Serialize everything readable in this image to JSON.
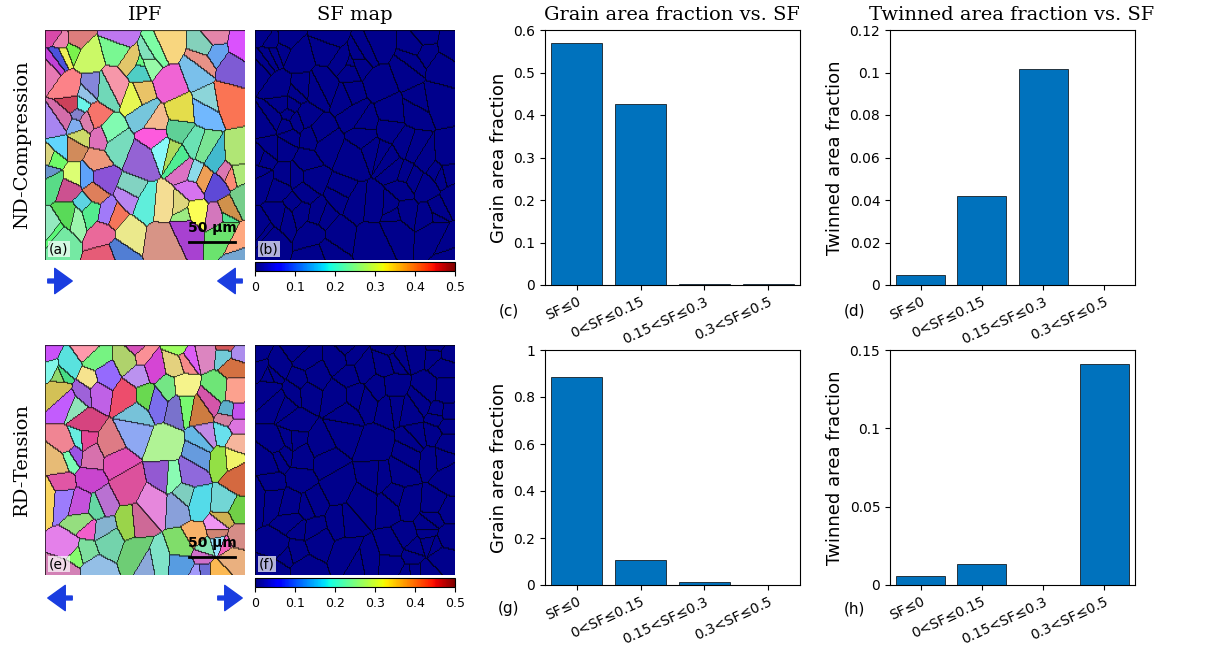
{
  "column_titles": [
    "IPF",
    "SF map",
    "Grain area fraction vs. SF",
    "Twinned area fraction vs. SF"
  ],
  "rows": [
    {
      "label": "ND-Compression",
      "ipf_panel": "(a)",
      "sf_panel": "(b)"
    },
    {
      "label": "RD-Tension",
      "ipf_panel": "(e)",
      "sf_panel": "(f)"
    }
  ],
  "scale_bar": "50 μm",
  "colorbar": {
    "range": [
      0,
      0.5
    ],
    "ticks": [
      0,
      0.1,
      0.2,
      0.3,
      0.4,
      0.5
    ]
  },
  "chart_data": [
    {
      "type": "bar",
      "panel": "(c)",
      "ylabel": "Grain area fraction",
      "categories": [
        "SF≤0",
        "0<SF≤0.15",
        "0.15<SF≤0.3",
        "0.3<SF≤0.5"
      ],
      "values": [
        0.57,
        0.425,
        0.003,
        0.003
      ],
      "color": "#0072bd",
      "ylim": [
        0,
        0.6
      ],
      "yticks": [
        0,
        0.1,
        0.2,
        0.3,
        0.4,
        0.5,
        0.6
      ]
    },
    {
      "type": "bar",
      "panel": "(d)",
      "ylabel": "Twinned area fraction",
      "categories": [
        "SF≤0",
        "0<SF≤0.15",
        "0.15<SF≤0.3",
        "0.3<SF≤0.5"
      ],
      "values": [
        0.0045,
        0.042,
        0.1015,
        0
      ],
      "color": "#0072bd",
      "ylim": [
        0,
        0.12
      ],
      "yticks": [
        0,
        0.02,
        0.04,
        0.06,
        0.08,
        0.1,
        0.12
      ]
    },
    {
      "type": "bar",
      "panel": "(g)",
      "ylabel": "Grain area fraction",
      "categories": [
        "SF≤0",
        "0<SF≤0.15",
        "0.15<SF≤0.3",
        "0.3<SF≤0.5"
      ],
      "values": [
        0.885,
        0.105,
        0.012,
        0.002
      ],
      "color": "#0072bd",
      "ylim": [
        0,
        1
      ],
      "yticks": [
        0,
        0.2,
        0.4,
        0.6,
        0.8,
        1
      ]
    },
    {
      "type": "bar",
      "panel": "(h)",
      "ylabel": "Twinned area fraction",
      "categories": [
        "SF≤0",
        "0<SF≤0.15",
        "0.15<SF≤0.3",
        "0.3<SF≤0.5"
      ],
      "values": [
        0.006,
        0.0135,
        0,
        0.141
      ],
      "color": "#0072bd",
      "ylim": [
        0,
        0.15
      ],
      "yticks": [
        0,
        0.05,
        0.1,
        0.15
      ]
    }
  ]
}
